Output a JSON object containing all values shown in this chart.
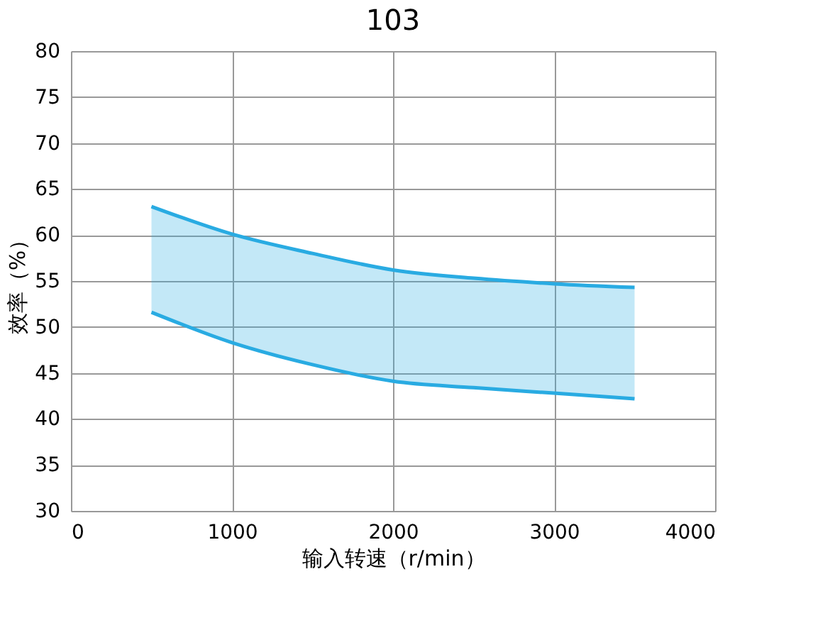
{
  "chart_data": {
    "type": "line",
    "title": "103",
    "xlabel": "输入转速（r/min）",
    "ylabel": "效率（%）",
    "x": [
      500,
      1000,
      1500,
      2000,
      2500,
      3000,
      3500
    ],
    "series": [
      {
        "color": "#29abe2",
        "values": [
          63.1,
          60.1,
          58.0,
          56.2,
          55.3,
          54.7,
          54.3
        ],
        "lower": [
          51.6,
          48.3,
          45.9,
          44.1,
          43.4,
          42.8,
          42.2
        ],
        "upper": [
          63.1,
          60.1,
          58.0,
          56.2,
          55.3,
          54.7,
          54.3
        ]
      },
      {
        "color": "#29abe2",
        "values": [
          51.6,
          48.3,
          45.9,
          44.1,
          43.4,
          42.8,
          42.2
        ]
      }
    ],
    "xlim": [
      0,
      4000
    ],
    "xticks": [
      0,
      1000,
      2000,
      3000,
      4000
    ],
    "ylim": [
      30,
      80
    ],
    "yticks": [
      30,
      35,
      40,
      45,
      50,
      55,
      60,
      65,
      70,
      75,
      80
    ],
    "grid": true
  }
}
